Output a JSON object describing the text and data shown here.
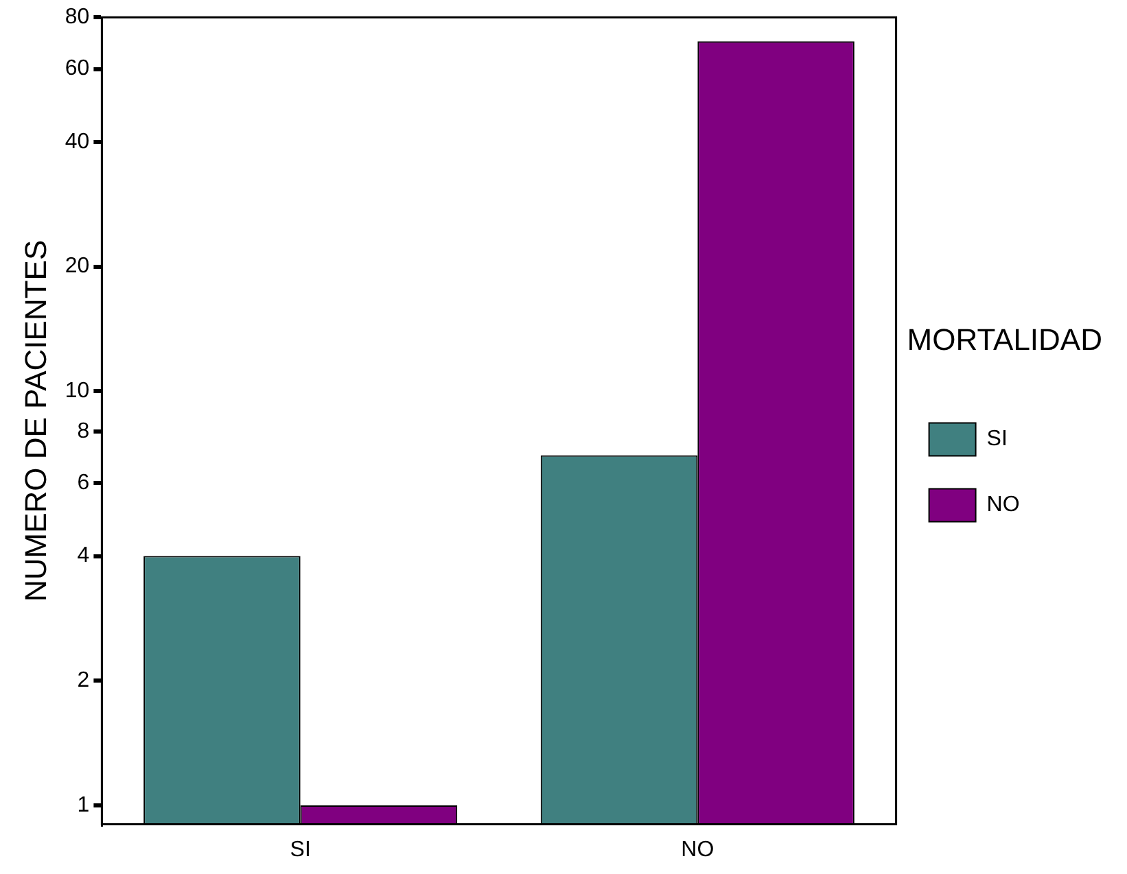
{
  "chart_data": {
    "type": "bar",
    "ylabel": "NUMERO DE PACIENTES",
    "legend_title": "MORTALIDAD",
    "categories": [
      "SI",
      "NO"
    ],
    "series": [
      {
        "name": "SI",
        "color": "#408080",
        "values": [
          4,
          7
        ]
      },
      {
        "name": "NO",
        "color": "#800080",
        "values": [
          1,
          70
        ]
      }
    ],
    "log": true,
    "ylim": [
      0.9,
      80
    ],
    "yticks": [
      1,
      2,
      4,
      6,
      8,
      10,
      20,
      40,
      60,
      80
    ],
    "grid": false,
    "legend": "right"
  }
}
